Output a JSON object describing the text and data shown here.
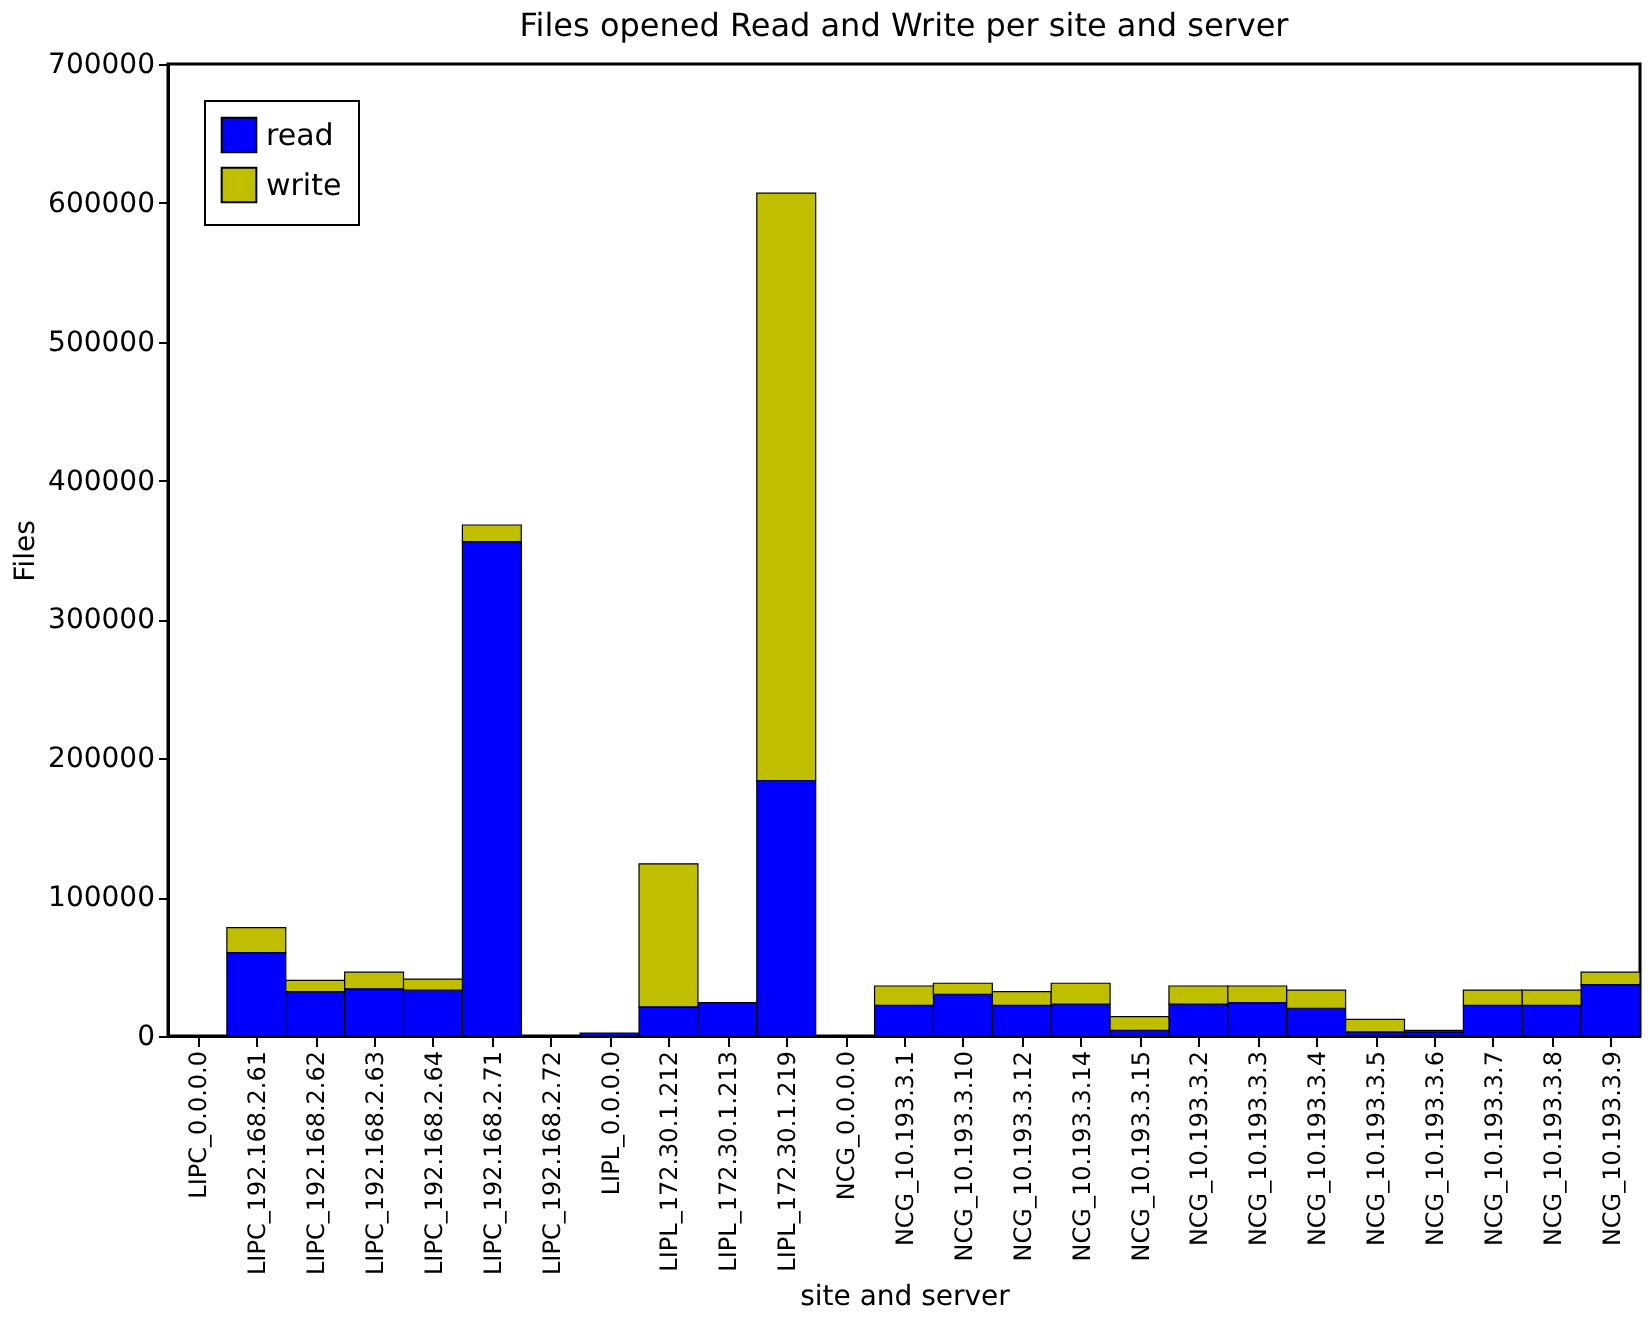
{
  "chart_data": {
    "type": "bar",
    "title": "Files opened Read and Write per site and server",
    "xlabel": "site and server",
    "ylabel": "Files",
    "categories": [
      "LIPC_0.0.0.0",
      "LIPC_192.168.2.61",
      "LIPC_192.168.2.62",
      "LIPC_192.168.2.63",
      "LIPC_192.168.2.64",
      "LIPC_192.168.2.71",
      "LIPC_192.168.2.72",
      "LIPL_0.0.0.0",
      "LIPL_172.30.1.212",
      "LIPL_172.30.1.213",
      "LIPL_172.30.1.219",
      "NCG_0.0.0.0",
      "NCG_10.193.3.1",
      "NCG_10.193.3.10",
      "NCG_10.193.3.12",
      "NCG_10.193.3.14",
      "NCG_10.193.3.15",
      "NCG_10.193.3.2",
      "NCG_10.193.3.3",
      "NCG_10.193.3.4",
      "NCG_10.193.3.5",
      "NCG_10.193.3.6",
      "NCG_10.193.3.7",
      "NCG_10.193.3.8",
      "NCG_10.193.3.9"
    ],
    "stacked": true,
    "series": [
      {
        "name": "read",
        "color": "#0000ff",
        "values": [
          0,
          60000,
          32000,
          34000,
          33000,
          356000,
          0,
          2000,
          21000,
          24000,
          184000,
          0,
          22000,
          30000,
          22000,
          23000,
          4000,
          23000,
          24000,
          20000,
          3000,
          3000,
          22000,
          22000,
          37000
        ]
      },
      {
        "name": "write",
        "color": "#bfbf00",
        "values": [
          0,
          18000,
          8000,
          12000,
          8000,
          12000,
          0,
          0,
          103000,
          null,
          423000,
          0,
          14000,
          8000,
          10000,
          15000,
          10000,
          13000,
          12000,
          13000,
          9000,
          1000,
          11000,
          11000,
          9000
        ]
      }
    ],
    "ylim": [
      0,
      700000
    ],
    "yticks": [
      0,
      100000,
      200000,
      300000,
      400000,
      500000,
      600000,
      700000
    ],
    "grid": false,
    "legend": "top left"
  }
}
